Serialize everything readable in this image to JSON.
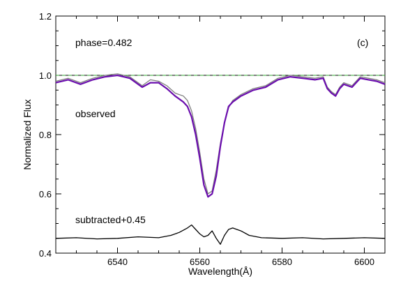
{
  "chart_data": {
    "type": "line",
    "xlabel": "Wavelength(Å)",
    "ylabel": "Normalized Flux",
    "xlim": [
      6525,
      6605
    ],
    "ylim": [
      0.4,
      1.2
    ],
    "x_ticks": [
      6540,
      6560,
      6580,
      6600
    ],
    "y_ticks": [
      0.4,
      0.6,
      0.8,
      1.0,
      1.2
    ],
    "x_tick_labels": [
      "6540",
      "6560",
      "6580",
      "6600"
    ],
    "y_tick_labels": [
      "0.4",
      "0.6",
      "0.8",
      "1.0",
      "1.2"
    ],
    "grid": false,
    "reference_line": {
      "y": 1.0,
      "colors": [
        "#000000",
        "#2ca02c"
      ]
    },
    "annotations": {
      "phase": "phase=0.482",
      "panel": "(c)",
      "observed": "observed",
      "subtracted": "subtracted+0.45"
    },
    "series": [
      {
        "color": "#7f7f7f",
        "x": [
          6525,
          6528,
          6531,
          6534,
          6537,
          6540,
          6543,
          6546,
          6548,
          6550,
          6552,
          6554,
          6556,
          6557,
          6558,
          6559,
          6560,
          6561,
          6562,
          6563,
          6564,
          6565,
          6566,
          6567,
          6568,
          6570,
          6573,
          6576,
          6579,
          6582,
          6585,
          6588,
          6590,
          6591,
          6592,
          6593,
          6594,
          6595,
          6597,
          6599,
          6601,
          6603,
          6605
        ],
        "y": [
          0.98,
          0.99,
          0.975,
          0.99,
          1.0,
          1.005,
          0.995,
          0.965,
          0.985,
          0.98,
          0.965,
          0.94,
          0.93,
          0.915,
          0.88,
          0.82,
          0.74,
          0.65,
          0.6,
          0.61,
          0.68,
          0.77,
          0.84,
          0.89,
          0.915,
          0.935,
          0.955,
          0.965,
          0.99,
          1.0,
          0.995,
          0.99,
          0.995,
          0.96,
          0.945,
          0.935,
          0.96,
          0.975,
          0.965,
          0.995,
          0.99,
          0.985,
          0.975
        ]
      },
      {
        "color": "#6a0dad",
        "x": [
          6525,
          6528,
          6531,
          6534,
          6537,
          6540,
          6543,
          6546,
          6548,
          6550,
          6552,
          6554,
          6556,
          6557,
          6558,
          6559,
          6560,
          6561,
          6562,
          6563,
          6564,
          6565,
          6566,
          6567,
          6568,
          6570,
          6573,
          6576,
          6579,
          6582,
          6585,
          6588,
          6590,
          6591,
          6592,
          6593,
          6594,
          6595,
          6597,
          6599,
          6601,
          6603,
          6605
        ],
        "y": [
          0.975,
          0.985,
          0.97,
          0.985,
          0.995,
          1.0,
          0.99,
          0.96,
          0.975,
          0.975,
          0.955,
          0.93,
          0.91,
          0.895,
          0.86,
          0.8,
          0.72,
          0.63,
          0.59,
          0.6,
          0.66,
          0.76,
          0.84,
          0.895,
          0.91,
          0.93,
          0.95,
          0.96,
          0.985,
          0.995,
          0.99,
          0.985,
          0.99,
          0.955,
          0.94,
          0.93,
          0.955,
          0.97,
          0.96,
          0.99,
          0.985,
          0.98,
          0.97
        ]
      },
      {
        "color": "#000000",
        "x": [
          6525,
          6530,
          6535,
          6540,
          6545,
          6550,
          6553,
          6555,
          6557,
          6558,
          6559,
          6560,
          6561,
          6562,
          6563,
          6564,
          6565,
          6566,
          6567,
          6568,
          6570,
          6572,
          6575,
          6580,
          6585,
          6590,
          6595,
          6600,
          6605
        ],
        "y": [
          0.45,
          0.452,
          0.448,
          0.45,
          0.455,
          0.452,
          0.46,
          0.47,
          0.485,
          0.495,
          0.48,
          0.465,
          0.455,
          0.46,
          0.475,
          0.45,
          0.43,
          0.46,
          0.48,
          0.485,
          0.475,
          0.46,
          0.452,
          0.45,
          0.452,
          0.448,
          0.45,
          0.452,
          0.45
        ]
      }
    ]
  }
}
